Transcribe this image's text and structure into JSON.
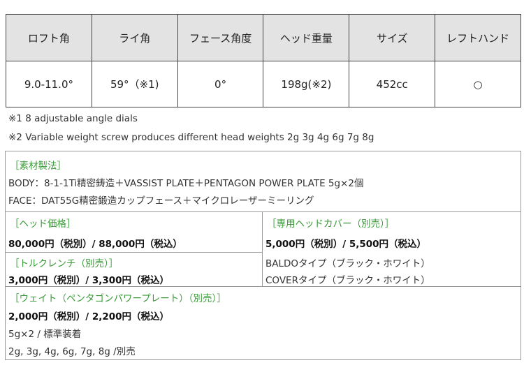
{
  "spec_table": {
    "headers": [
      "ロフト角",
      "ライ角",
      "フェース角度",
      "ヘッド重量",
      "サイズ",
      "レフトハンド"
    ],
    "values": [
      "9.0-11.0°",
      "59°（※1)",
      "0°",
      "198g(※2)",
      "452cc",
      "○"
    ]
  },
  "notes": [
    "※1  8 adjustable angle dials",
    "※2 Variable weight screw produces different head weights 2g 3g 4g 6g 7g 8g"
  ],
  "material": {
    "heading": "［素材製法］",
    "lines": [
      "BODY：8-1-1Ti精密鋳造＋VASSIST PLATE＋PENTAGON POWER PLATE 5g×2個",
      "FACE：DAT55G精密鍛造カップフェース＋マイクロレーザーミーリング"
    ]
  },
  "head_price": {
    "heading": "［ヘッド価格］",
    "price": "80,000円（税別）/ 88,000円（税込）"
  },
  "wrench": {
    "heading": "［トルクレンチ（別売）］",
    "price": "3,000円（税別）/ 3,300円（税込）"
  },
  "cover": {
    "heading": "［専用ヘッドカバー（別売）］",
    "price": "5,000円（税別）/ 5,500円（税込）",
    "types": [
      "BALDOタイプ（ブラック・ホワイト）",
      "COVERタイプ（ブラック・ホワイト）"
    ]
  },
  "weight": {
    "heading": "［ウェイト（ペンタゴンパワープレート）（別売）］",
    "price": "2,000円（税別）/ 2,200円（税込）",
    "lines": [
      "5g×2 / 標準装着",
      "2g, 3g, 4g, 6g, 7g, 8g /別売"
    ]
  },
  "colors": {
    "heading_green": "#3a9a3a",
    "header_bg": "#e3e3e3"
  }
}
